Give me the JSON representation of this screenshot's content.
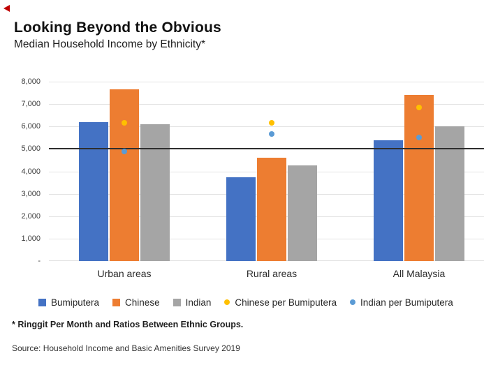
{
  "page": {
    "title": "Looking Beyond the Obvious",
    "subtitle": "Median Household Income by Ethnicity*",
    "footnote": "* Ringgit Per Month and Ratios Between Ethnic Groups.",
    "source": "Source: Household Income and Basic Amenities Survey 2019"
  },
  "chart_data": {
    "type": "bar",
    "title": "Looking Beyond the Obvious",
    "subtitle": "Median Household Income by Ethnicity*",
    "categories": [
      "Urban areas",
      "Rural areas",
      "All Malaysia"
    ],
    "y_axis": {
      "min": 0,
      "max": 8000,
      "tick_step": 1000,
      "tick_labels_top_down": [
        "8,000",
        "7,000",
        "6,000",
        "5,000",
        "4,000",
        "3,000",
        "2,000",
        "1,000",
        "-"
      ],
      "grid": true
    },
    "reference_line": {
      "value": 5000,
      "color": "#2e2e2e"
    },
    "bar_series": [
      {
        "name": "Bumiputera",
        "color": "#4472C4",
        "values": [
          6200,
          3750,
          5400
        ]
      },
      {
        "name": "Chinese",
        "color": "#ED7D31",
        "values": [
          7650,
          4600,
          7400
        ]
      },
      {
        "name": "Indian",
        "color": "#A5A5A5",
        "values": [
          6100,
          4250,
          6000
        ]
      }
    ],
    "dot_series": [
      {
        "name": "Chinese per Bumiputera",
        "color": "#FFC000",
        "ratios": [
          1.23,
          1.23,
          1.37
        ],
        "plotted_primary_values": [
          6150,
          6150,
          6850
        ]
      },
      {
        "name": "Indian per Bumiputera",
        "color": "#5B9BD5",
        "ratios": [
          0.98,
          1.13,
          1.1
        ],
        "plotted_primary_values": [
          4900,
          5650,
          5500
        ]
      }
    ],
    "legend": {
      "position": "bottom",
      "items": [
        "Bumiputera",
        "Chinese",
        "Indian",
        "Chinese per Bumiputera",
        "Indian per Bumiputera"
      ]
    },
    "notes": "Ratio dots plotted on hidden secondary axis 0–1.6 aligned to primary 0–8,000; dark line marks 5,000 (ratio 1.0)."
  }
}
